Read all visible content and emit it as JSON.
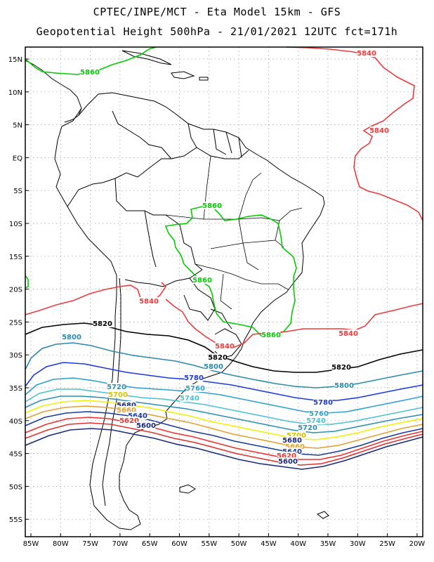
{
  "title_line1": "CPTEC/INPE/MCT  -  Eta Model 15km  -  GFS",
  "title_line2": "Geopotential Height 500hPa - 21/01/2021 12UTC fct=171h",
  "lat_labels": [
    "15N",
    "10N",
    "5N",
    "EQ",
    "5S",
    "10S",
    "15S",
    "20S",
    "25S",
    "30S",
    "35S",
    "40S",
    "45S",
    "50S",
    "55S"
  ],
  "lon_labels": [
    "85W",
    "80W",
    "75W",
    "70W",
    "65W",
    "60W",
    "55W",
    "50W",
    "45W",
    "40W",
    "35W",
    "30W",
    "25W",
    "20W"
  ],
  "contour_colors": {
    "5860": "#00cc00",
    "5840": "#e83c3c",
    "5820": "#000000",
    "5800": "#2a8aa8",
    "5780": "#1a3adc",
    "5760": "#2aa0d0",
    "5740": "#4ac0d0",
    "5720": "#2a90b0",
    "5700": "#f0f000",
    "5680": "#e0a030",
    "5660": "#1a3a9c",
    "5640": "#ee3030",
    "5620": "#e03030",
    "5600": "#1a2a78"
  },
  "contour_labels": [
    {
      "text": "5840",
      "color": "#e83c3c"
    },
    {
      "text": "5860",
      "color": "#00cc00"
    },
    {
      "text": "5840",
      "color": "#e83c3c"
    },
    {
      "text": "5860",
      "color": "#00cc00"
    },
    {
      "text": "5860",
      "color": "#00cc00"
    },
    {
      "text": "5840",
      "color": "#e83c3c"
    },
    {
      "text": "5820",
      "color": "#000000"
    },
    {
      "text": "5860",
      "color": "#00cc00"
    },
    {
      "text": "5840",
      "color": "#e83c3c"
    },
    {
      "text": "5800",
      "color": "#2a8aa8"
    },
    {
      "text": "5840",
      "color": "#e83c3c"
    },
    {
      "text": "5820",
      "color": "#000000"
    },
    {
      "text": "5800",
      "color": "#2a8aa8"
    },
    {
      "text": "5820",
      "color": "#000000"
    },
    {
      "text": "5780",
      "color": "#1a3adc"
    },
    {
      "text": "5760",
      "color": "#2aa0d0"
    },
    {
      "text": "5800",
      "color": "#2a8aa8"
    },
    {
      "text": "5720",
      "color": "#2a90b0"
    },
    {
      "text": "5700",
      "color": "#d8c000"
    },
    {
      "text": "5740",
      "color": "#4ac0d0"
    },
    {
      "text": "5680",
      "color": "#1a2a78"
    },
    {
      "text": "5660",
      "color": "#e0a030"
    },
    {
      "text": "5640",
      "color": "#1a3a9c"
    },
    {
      "text": "5620",
      "color": "#ee3030"
    },
    {
      "text": "5600",
      "color": "#1a2a78"
    },
    {
      "text": "5780",
      "color": "#1a3adc"
    },
    {
      "text": "5760",
      "color": "#2aa0d0"
    },
    {
      "text": "5740",
      "color": "#4ac0d0"
    },
    {
      "text": "5720",
      "color": "#2a90b0"
    },
    {
      "text": "5700",
      "color": "#d8c000"
    },
    {
      "text": "5680",
      "color": "#1a2a78"
    },
    {
      "text": "5660",
      "color": "#e0a030"
    },
    {
      "text": "5640",
      "color": "#1a3a9c"
    },
    {
      "text": "5620",
      "color": "#ee3030"
    },
    {
      "text": "5600",
      "color": "#1a2a78"
    }
  ]
}
